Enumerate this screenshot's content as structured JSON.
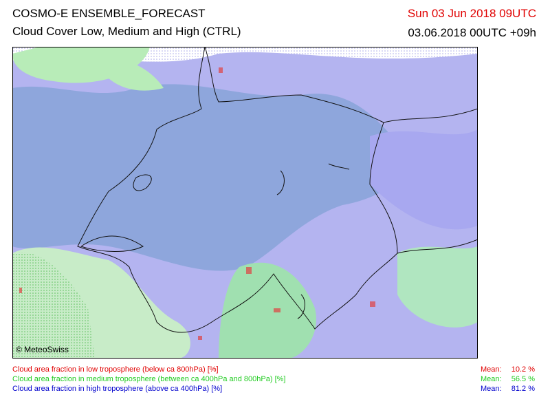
{
  "header": {
    "title": "COSMO-E ENSEMBLE_FORECAST",
    "subtitle": "Cloud Cover Low, Medium and High (CTRL)",
    "valid_time": "Sun 03 Jun 2018 09UTC",
    "run_time": "03.06.2018 00UTC +09h"
  },
  "map": {
    "copyright": "© MeteoSwiss"
  },
  "legend": [
    {
      "label": "Cloud area fraction in low troposphere (below ca 800hPa) [%]",
      "mean_label": "Mean:",
      "mean": "10.2 %",
      "color": "#e00000"
    },
    {
      "label": "Cloud area fraction in medium troposphere (between ca 400hPa and 800hPa) [%]",
      "mean_label": "Mean:",
      "mean": "56.5 %",
      "color": "#22cc22"
    },
    {
      "label": "Cloud area fraction in high troposphere (above ca 400hPa) [%]",
      "mean_label": "Mean:",
      "mean": "81.2 %",
      "color": "#0000cc"
    }
  ]
}
